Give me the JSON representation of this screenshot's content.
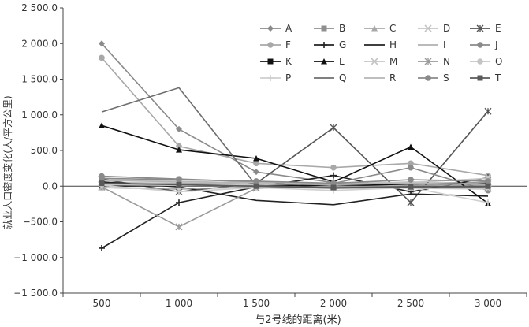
{
  "chart_data": {
    "type": "line",
    "xlabel": "与2号线的距离(米)",
    "ylabel": "就业人口密度变化(人/平方公里)",
    "x": [
      "500",
      "1 000",
      "1 500",
      "2 000",
      "2 500",
      "3 000"
    ],
    "ylim": [
      -1500,
      2500
    ],
    "yticks": [
      -1500,
      -1000,
      -500,
      0,
      500,
      1000,
      1500,
      2000,
      2500
    ],
    "ytick_labels": [
      "−1 500.0",
      "−1 000.0",
      "−500.0",
      "0.0",
      "500.0",
      "1 000.0",
      "1 500.0",
      "2 000.0",
      "2 500.0"
    ],
    "grid": false,
    "legend_position": "top-right",
    "series": [
      {
        "name": "A",
        "color": "#8a8a8a",
        "marker": "diamond",
        "values": [
          2000,
          800,
          200,
          50,
          30,
          -20
        ]
      },
      {
        "name": "B",
        "color": "#8f8f8f",
        "marker": "square",
        "values": [
          -20,
          -40,
          -10,
          -30,
          -20,
          -10
        ]
      },
      {
        "name": "C",
        "color": "#a8a8a8",
        "marker": "triangle",
        "values": [
          50,
          40,
          30,
          20,
          10,
          20
        ]
      },
      {
        "name": "D",
        "color": "#c4c4c4",
        "marker": "x",
        "values": [
          90,
          70,
          40,
          30,
          60,
          30
        ]
      },
      {
        "name": "E",
        "color": "#555555",
        "marker": "star",
        "values": [
          100,
          -80,
          40,
          820,
          -230,
          1050
        ]
      },
      {
        "name": "F",
        "color": "#a8a8a8",
        "marker": "circle",
        "values": [
          1800,
          560,
          320,
          260,
          320,
          150
        ]
      },
      {
        "name": "G",
        "color": "#222222",
        "marker": "plus",
        "values": [
          -870,
          -230,
          -10,
          150,
          -80,
          120
        ]
      },
      {
        "name": "H",
        "color": "#222222",
        "marker": "none",
        "values": [
          60,
          -10,
          -200,
          -260,
          -110,
          -140
        ]
      },
      {
        "name": "I",
        "color": "#b0b0b0",
        "marker": "none",
        "values": [
          30,
          20,
          10,
          0,
          10,
          -10
        ]
      },
      {
        "name": "J",
        "color": "#8a8a8a",
        "marker": "circle",
        "values": [
          140,
          100,
          60,
          40,
          260,
          -60
        ]
      },
      {
        "name": "K",
        "color": "#111111",
        "marker": "square",
        "values": [
          0,
          10,
          20,
          0,
          30,
          50
        ]
      },
      {
        "name": "L",
        "color": "#111111",
        "marker": "triangle",
        "values": [
          850,
          510,
          390,
          60,
          550,
          -240
        ]
      },
      {
        "name": "M",
        "color": "#c4c4c4",
        "marker": "x",
        "values": [
          -20,
          -30,
          -20,
          -10,
          -30,
          -40
        ]
      },
      {
        "name": "N",
        "color": "#9a9a9a",
        "marker": "star",
        "values": [
          -10,
          -570,
          -30,
          0,
          -10,
          60
        ]
      },
      {
        "name": "O",
        "color": "#c4c4c4",
        "marker": "circle",
        "values": [
          20,
          10,
          20,
          40,
          50,
          110
        ]
      },
      {
        "name": "P",
        "color": "#cfcfcf",
        "marker": "plus",
        "values": [
          10,
          -80,
          -20,
          -60,
          -20,
          -230
        ]
      },
      {
        "name": "Q",
        "color": "#6e6e6e",
        "marker": "none",
        "values": [
          1040,
          1380,
          10,
          -30,
          0,
          -20
        ]
      },
      {
        "name": "R",
        "color": "#b5b5b5",
        "marker": "none",
        "values": [
          80,
          60,
          50,
          40,
          40,
          30
        ]
      },
      {
        "name": "S",
        "color": "#8a8a8a",
        "marker": "circle",
        "values": [
          110,
          90,
          70,
          40,
          90,
          70
        ]
      },
      {
        "name": "T",
        "color": "#5a5a5a",
        "marker": "square",
        "values": [
          40,
          20,
          0,
          -20,
          -10,
          0
        ]
      }
    ]
  }
}
